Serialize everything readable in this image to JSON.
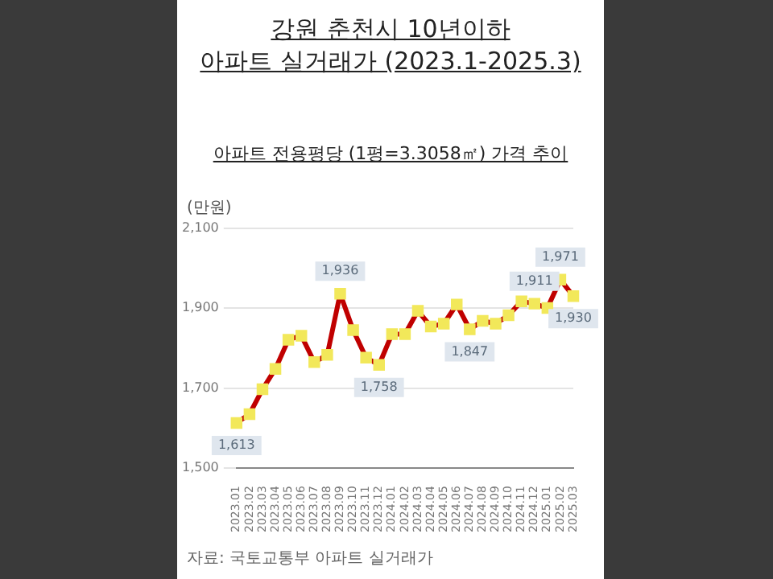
{
  "chart_data": {
    "type": "line",
    "title": "강원 춘천시 10년이하\n아파트 실거래가 (2023.1-2025.3)",
    "subtitle": "아파트 전용평당 (1평=3.3058㎡) 가격 추이",
    "ylabel": "(만원)",
    "categories": [
      "2023.01",
      "2023.02",
      "2023.03",
      "2023.04",
      "2023.05",
      "2023.06",
      "2023.07",
      "2023.08",
      "2023.09",
      "2023.10",
      "2023.11",
      "2023.12",
      "2024.01",
      "2024.02",
      "2024.03",
      "2024.04",
      "2024.05",
      "2024.06",
      "2024.07",
      "2024.08",
      "2024.09",
      "2024.10",
      "2024.11",
      "2024.12",
      "2025.01",
      "2025.02",
      "2025.03"
    ],
    "series": [
      {
        "color": "#c00000",
        "values": [
          1613,
          1635,
          1697,
          1748,
          1821,
          1831,
          1765,
          1783,
          1936,
          1845,
          1776,
          1758,
          1835,
          1835,
          1893,
          1854,
          1861,
          1909,
          1847,
          1868,
          1861,
          1882,
          1917,
          1911,
          1900,
          1971,
          1930
        ],
        "value_labels": [
          "1,613",
          null,
          null,
          null,
          null,
          null,
          null,
          null,
          "1,936",
          null,
          null,
          "1,758",
          null,
          null,
          null,
          null,
          null,
          null,
          "1,847",
          null,
          null,
          null,
          null,
          "1,911",
          null,
          "1,971",
          "1,930"
        ]
      }
    ],
    "marker": "square",
    "ylim": [
      1500,
      2100
    ],
    "yticks": [
      {
        "value": 1500,
        "label": "1,500"
      },
      {
        "value": 1700,
        "label": "1,700"
      },
      {
        "value": 1900,
        "label": "1,900"
      },
      {
        "value": 2100,
        "label": "2,100"
      }
    ],
    "grid": "y",
    "legend": false,
    "annotations": [
      "자료: 국토교통부 아파트 실거래가"
    ]
  }
}
